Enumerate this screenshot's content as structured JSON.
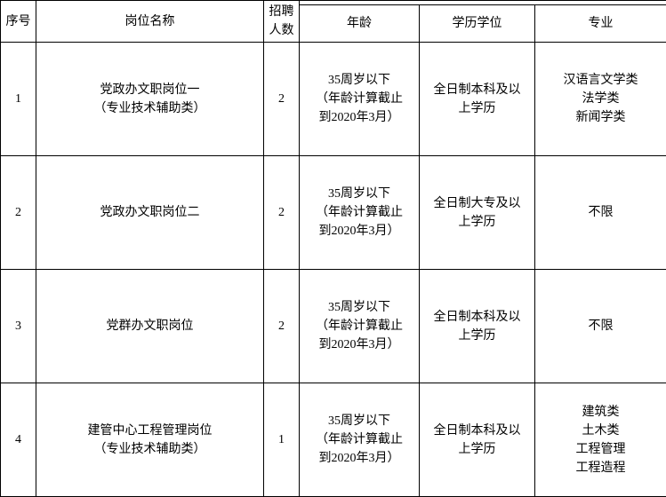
{
  "headers": {
    "seq": "序号",
    "position": "岗位名称",
    "count": "招聘\n人数",
    "age": "年龄",
    "education": "学历学位",
    "major": "专业"
  },
  "rows": [
    {
      "seq": "1",
      "position": "党政办文职岗位一\n（专业技术辅助类）",
      "count": "2",
      "age": "35周岁以下\n（年龄计算截止\n到2020年3月）",
      "education": "全日制本科及以\n上学历",
      "major": "汉语言文学类\n法学类\n新闻学类"
    },
    {
      "seq": "2",
      "position": "党政办文职岗位二",
      "count": "2",
      "age": "35周岁以下\n（年龄计算截止\n到2020年3月）",
      "education": "全日制大专及以\n上学历",
      "major": "不限"
    },
    {
      "seq": "3",
      "position": "党群办文职岗位",
      "count": "2",
      "age": "35周岁以下\n（年龄计算截止\n到2020年3月）",
      "education": "全日制本科及以\n上学历",
      "major": "不限"
    },
    {
      "seq": "4",
      "position": "建管中心工程管理岗位\n（专业技术辅助类）",
      "count": "1",
      "age": "35周岁以下\n（年龄计算截止\n到2020年3月）",
      "education": "全日制本科及以\n上学历",
      "major": "建筑类\n土木类\n工程管理\n工程造程"
    }
  ]
}
